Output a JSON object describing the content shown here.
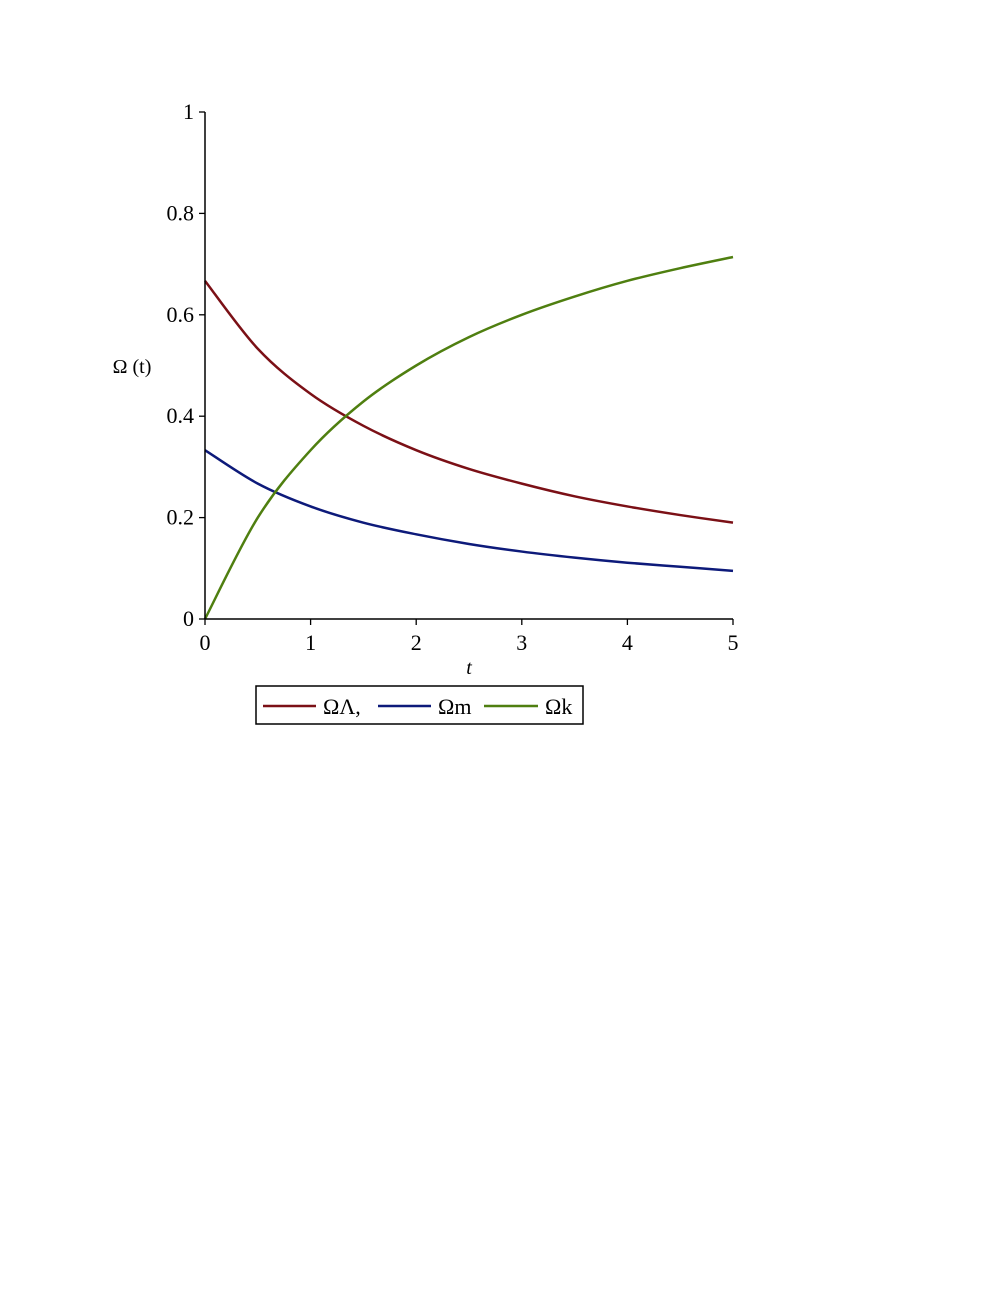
{
  "chart_data": {
    "type": "line",
    "title": "",
    "xlabel": "t",
    "ylabel": "Ω (t)",
    "xlim": [
      0,
      5
    ],
    "ylim": [
      0,
      1
    ],
    "x_ticks": [
      "0",
      "1",
      "2",
      "3",
      "4",
      "5"
    ],
    "y_ticks": [
      "0",
      "0.2",
      "0.4",
      "0.6",
      "0.8",
      "1"
    ],
    "grid": false,
    "legend_position": "bottom",
    "x": [
      0,
      0.5,
      1,
      1.5,
      2,
      2.5,
      3,
      3.5,
      4,
      4.5,
      5
    ],
    "series": [
      {
        "name": "ΩΛ,",
        "color": "#7b1016",
        "values": [
          0.667,
          0.533,
          0.444,
          0.381,
          0.333,
          0.296,
          0.267,
          0.242,
          0.222,
          0.205,
          0.19
        ]
      },
      {
        "name": "Ωm",
        "color": "#0d1a7a",
        "values": [
          0.333,
          0.267,
          0.222,
          0.19,
          0.167,
          0.148,
          0.133,
          0.121,
          0.111,
          0.103,
          0.095
        ]
      },
      {
        "name": "Ωk",
        "color": "#4f7f10",
        "values": [
          0.0,
          0.2,
          0.333,
          0.429,
          0.5,
          0.556,
          0.6,
          0.636,
          0.667,
          0.692,
          0.714
        ]
      }
    ]
  }
}
